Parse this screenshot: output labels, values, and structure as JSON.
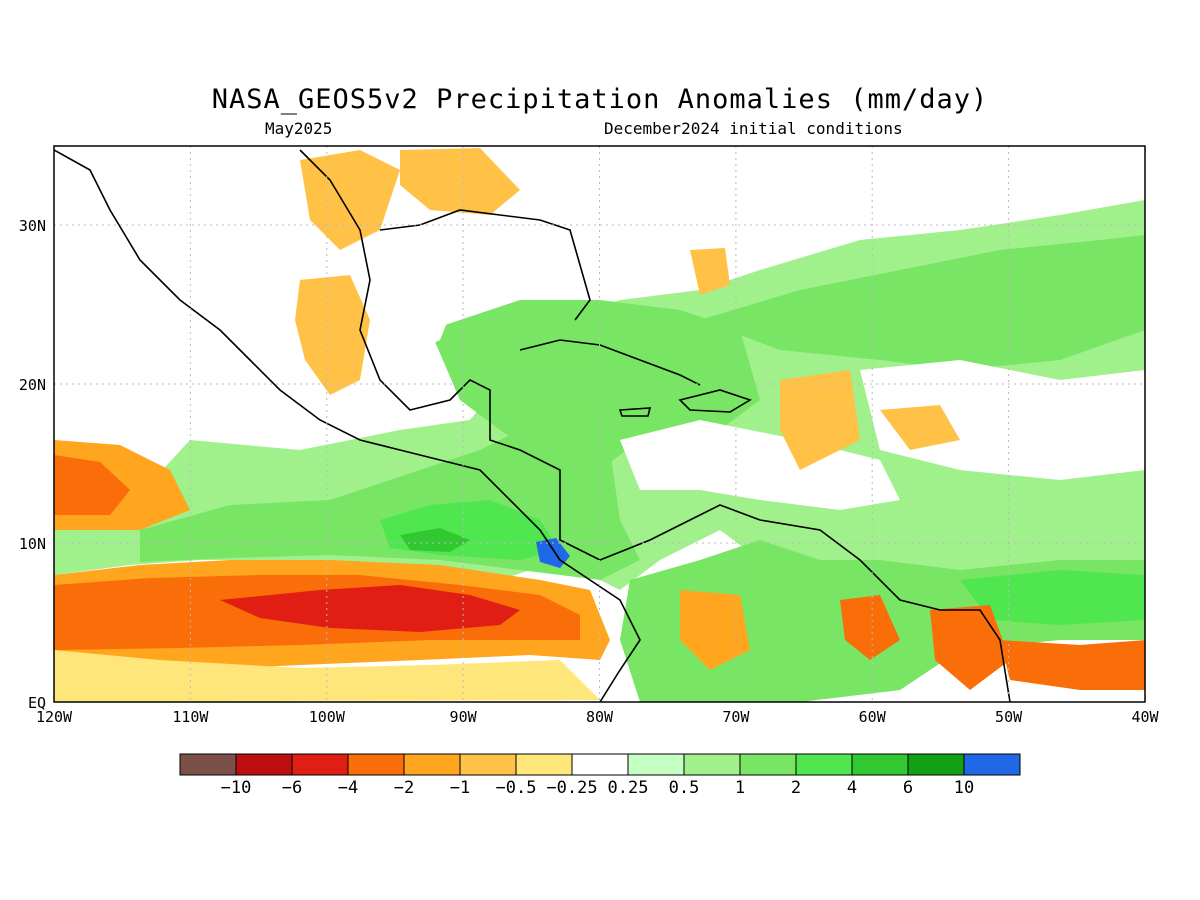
{
  "header": {
    "title": "NASA_GEOS5v2 Precipitation Anomalies (mm/day)",
    "month": "May2025",
    "init": "December2024 initial conditions"
  },
  "map": {
    "lon_range": [
      -120,
      -40
    ],
    "lat_range": [
      0,
      35
    ],
    "x_ticks": [
      "120W",
      "110W",
      "100W",
      "90W",
      "80W",
      "70W",
      "60W",
      "50W",
      "40W"
    ],
    "y_ticks": [
      "EQ",
      "10N",
      "20N",
      "30N"
    ],
    "grid": true
  },
  "colorbar": {
    "colors": [
      "#7a5048",
      "#bd0f0f",
      "#e01e14",
      "#fa6e0a",
      "#ffa51e",
      "#ffc247",
      "#ffe67a",
      "#ffffff",
      "#c6ffc2",
      "#a0f08c",
      "#78e664",
      "#50e650",
      "#32c832",
      "#14a014",
      "#2068e6"
    ],
    "labels": [
      "-10",
      "-6",
      "-4",
      "-2",
      "-1",
      "-0.5",
      "-0.25",
      "0.25",
      "0.5",
      "1",
      "2",
      "4",
      "6",
      "10"
    ]
  }
}
